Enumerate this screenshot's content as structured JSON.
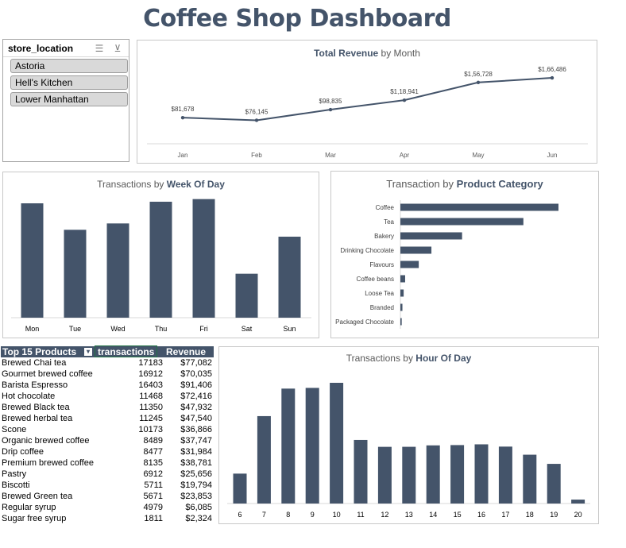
{
  "dashboard_title": "Coffee Shop Dashboard",
  "slicer": {
    "title": "store_location",
    "icons": [
      "multi-select-icon",
      "clear-filter-icon"
    ],
    "items": [
      "Astoria",
      "Hell's Kitchen",
      "Lower Manhattan"
    ]
  },
  "colors": {
    "bar": "#44546a",
    "title": "#44546a"
  },
  "revenue_chart": {
    "title_plain": "Total Revenue",
    "title_bold_suffix": " by Month",
    "chart_data": {
      "type": "line",
      "categories": [
        "Jan",
        "Feb",
        "Mar",
        "Apr",
        "May",
        "Jun"
      ],
      "values": [
        81678,
        76145,
        98835,
        118941,
        156728,
        166486
      ],
      "labels": [
        "$81,678",
        "$76,145",
        "$98,835",
        "$1,18,941",
        "$1,56,728",
        "$1,66,486"
      ]
    }
  },
  "week_chart": {
    "title_plain": "Transactions by ",
    "title_bold": "Week Of Day",
    "chart_data": {
      "type": "bar",
      "categories": [
        "Mon",
        "Tue",
        "Wed",
        "Thu",
        "Fri",
        "Sat",
        "Sun"
      ],
      "values": [
        21600,
        16600,
        17800,
        21900,
        22400,
        8300,
        15300
      ]
    }
  },
  "category_chart": {
    "title_plain": "Transaction by ",
    "title_bold": "Product Category",
    "chart_data": {
      "type": "bar",
      "orientation": "horizontal",
      "categories": [
        "Coffee",
        "Tea",
        "Bakery",
        "Drinking Chocolate",
        "Flavours",
        "Coffee beans",
        "Loose Tea",
        "Branded",
        "Packaged Chocolate"
      ],
      "values": [
        58416,
        45449,
        22796,
        11468,
        6790,
        1753,
        1210,
        747,
        487
      ]
    }
  },
  "hour_chart": {
    "title_plain": "Transactions by ",
    "title_bold": "Hour Of Day",
    "chart_data": {
      "type": "bar",
      "categories": [
        "6",
        "7",
        "8",
        "9",
        "10",
        "11",
        "12",
        "13",
        "14",
        "15",
        "16",
        "17",
        "18",
        "19",
        "20"
      ],
      "values": [
        4594,
        13428,
        17654,
        17764,
        18545,
        9766,
        8708,
        8714,
        8933,
        8979,
        9093,
        8745,
        7498,
        6092,
        603
      ]
    }
  },
  "products_table": {
    "headers": [
      "Top 15 Products",
      "transactions",
      "Revenue"
    ],
    "rows": [
      [
        "Brewed Chai tea",
        "17183",
        "$77,082"
      ],
      [
        "Gourmet brewed coffee",
        "16912",
        "$70,035"
      ],
      [
        "Barista Espresso",
        "16403",
        "$91,406"
      ],
      [
        "Hot chocolate",
        "11468",
        "$72,416"
      ],
      [
        "Brewed Black tea",
        "11350",
        "$47,932"
      ],
      [
        "Brewed herbal tea",
        "11245",
        "$47,540"
      ],
      [
        "Scone",
        "10173",
        "$36,866"
      ],
      [
        "Organic brewed coffee",
        "8489",
        "$37,747"
      ],
      [
        "Drip coffee",
        "8477",
        "$31,984"
      ],
      [
        "Premium brewed coffee",
        "8135",
        "$38,781"
      ],
      [
        "Pastry",
        "6912",
        "$25,656"
      ],
      [
        "Biscotti",
        "5711",
        "$19,794"
      ],
      [
        "Brewed Green tea",
        "5671",
        "$23,853"
      ],
      [
        "Regular syrup",
        "4979",
        "$6,085"
      ],
      [
        "Sugar free syrup",
        "1811",
        "$2,324"
      ]
    ]
  }
}
